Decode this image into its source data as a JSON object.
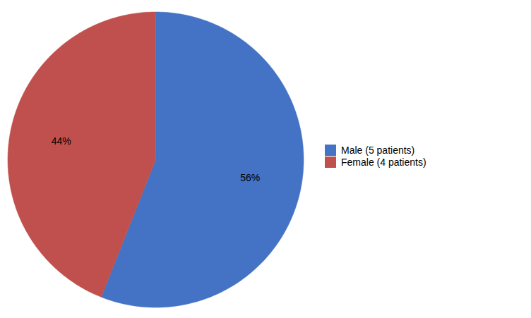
{
  "chart_data": {
    "type": "pie",
    "categories": [
      "Male (5 patients)",
      "Female (4 patients)"
    ],
    "values": [
      56,
      44
    ],
    "value_labels": [
      "56%",
      "44%"
    ],
    "colors": [
      "#4472C4",
      "#C0504D"
    ],
    "data_labels": true,
    "legend": "right"
  }
}
